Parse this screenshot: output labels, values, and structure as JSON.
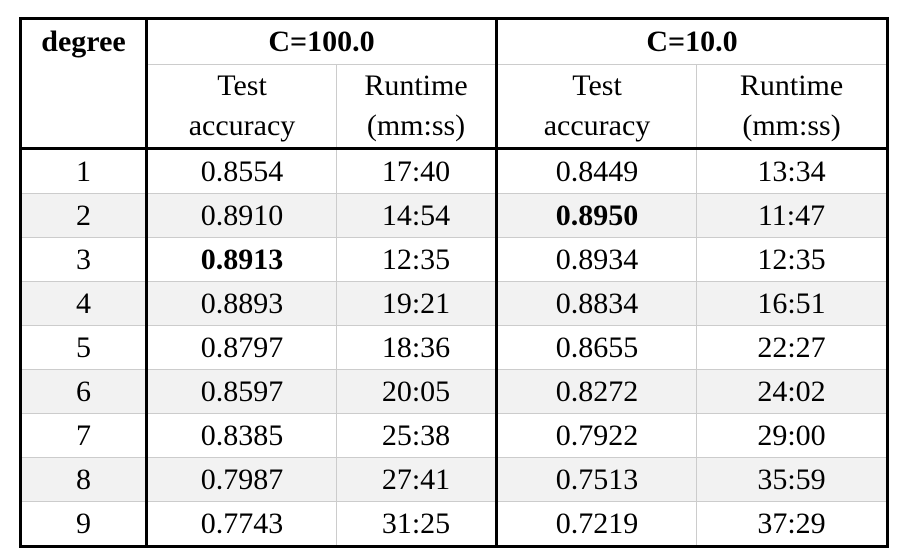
{
  "table": {
    "corner_label": "degree",
    "groups": [
      "C=100.0",
      "C=10.0"
    ],
    "subheaders": [
      [
        "Test",
        "accuracy"
      ],
      [
        "Runtime",
        "(mm:ss)"
      ],
      [
        "Test",
        "accuracy"
      ],
      [
        "Runtime",
        "(mm:ss)"
      ]
    ],
    "rows": [
      {
        "degree": "1",
        "acc1": "0.8554",
        "rt1": "17:40",
        "acc2": "0.8449",
        "rt2": "13:34"
      },
      {
        "degree": "2",
        "acc1": "0.8910",
        "rt1": "14:54",
        "acc2": "0.8950",
        "rt2": "11:47"
      },
      {
        "degree": "3",
        "acc1": "0.8913",
        "rt1": "12:35",
        "acc2": "0.8934",
        "rt2": "12:35"
      },
      {
        "degree": "4",
        "acc1": "0.8893",
        "rt1": "19:21",
        "acc2": "0.8834",
        "rt2": "16:51"
      },
      {
        "degree": "5",
        "acc1": "0.8797",
        "rt1": "18:36",
        "acc2": "0.8655",
        "rt2": "22:27"
      },
      {
        "degree": "6",
        "acc1": "0.8597",
        "rt1": "20:05",
        "acc2": "0.8272",
        "rt2": "24:02"
      },
      {
        "degree": "7",
        "acc1": "0.8385",
        "rt1": "25:38",
        "acc2": "0.7922",
        "rt2": "29:00"
      },
      {
        "degree": "8",
        "acc1": "0.7987",
        "rt1": "27:41",
        "acc2": "0.7513",
        "rt2": "35:59"
      },
      {
        "degree": "9",
        "acc1": "0.7743",
        "rt1": "31:25",
        "acc2": "0.7219",
        "rt2": "37:29"
      }
    ]
  }
}
